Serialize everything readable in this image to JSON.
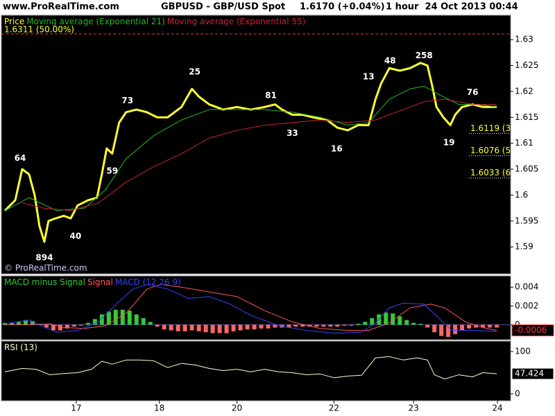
{
  "header": {
    "site": "www.ProRealTime.com",
    "instrument": "GBPUSD - GBP/USD Spot",
    "quote": "1.6170 (+0.04%)",
    "period": "1 hour  24 Oct 2013 00:44"
  },
  "chart_data": [
    {
      "type": "line",
      "xlim": [
        0,
        147
      ],
      "ylim": [
        1.5848,
        1.6347
      ],
      "yticks": [
        1.59,
        1.595,
        1.6,
        1.605,
        1.61,
        1.615,
        1.62,
        1.625,
        1.63
      ],
      "watermark": "© ProRealTime.com",
      "levels": [
        {
          "value": 1.6311,
          "label": "1.6311 (50.00%)",
          "color": "#ff3333",
          "style": "dashed"
        },
        {
          "value": 1.6119,
          "label": "1.6119 (38",
          "color": "#ffffff",
          "style": "dotted"
        },
        {
          "value": 1.6076,
          "label": "1.6076 (50",
          "color": "#ffffff",
          "style": "dotted"
        },
        {
          "value": 1.6033,
          "label": "1.6033 (6",
          "color": "#ffffff",
          "style": "dotted"
        }
      ],
      "series": [
        {
          "name": "Price",
          "color": "#ffff33",
          "type": "line",
          "width": 3,
          "x": [
            1,
            4,
            6,
            8,
            9.6,
            11,
            12.4,
            13.6,
            15.6,
            18,
            20,
            22,
            25,
            27.6,
            29,
            30.4,
            32,
            34,
            36,
            39,
            42,
            45,
            48,
            52,
            55,
            57,
            60,
            64,
            68,
            72,
            76,
            79,
            81,
            84,
            87,
            90,
            94,
            97,
            100,
            103,
            106,
            108,
            109.6,
            112,
            115,
            118,
            121,
            123,
            124.4,
            125.6,
            127.6,
            129.6,
            131,
            133,
            136,
            139,
            143
          ],
          "values": [
            1.597,
            1.599,
            1.605,
            1.604,
            1.6,
            1.594,
            1.591,
            1.595,
            1.5955,
            1.596,
            1.5955,
            1.598,
            1.599,
            1.5995,
            1.604,
            1.609,
            1.608,
            1.614,
            1.616,
            1.6165,
            1.616,
            1.615,
            1.615,
            1.617,
            1.6205,
            1.619,
            1.6175,
            1.6165,
            1.617,
            1.6165,
            1.617,
            1.6175,
            1.6165,
            1.6155,
            1.6155,
            1.615,
            1.6145,
            1.613,
            1.6125,
            1.6135,
            1.6135,
            1.6185,
            1.6215,
            1.6245,
            1.624,
            1.6245,
            1.6255,
            1.625,
            1.621,
            1.617,
            1.615,
            1.6135,
            1.6155,
            1.617,
            1.6175,
            1.617,
            1.617
          ]
        },
        {
          "name": "Moving average (Exponential 21)",
          "color": "#22bb22",
          "type": "line",
          "width": 1,
          "x": [
            1,
            8,
            16,
            24,
            30,
            36,
            44,
            52,
            60,
            68,
            76,
            84,
            92,
            100,
            106,
            112,
            118,
            122,
            126,
            132,
            138,
            143
          ],
          "values": [
            1.597,
            1.5995,
            1.597,
            1.5975,
            1.601,
            1.607,
            1.6115,
            1.6145,
            1.6165,
            1.6165,
            1.6165,
            1.616,
            1.615,
            1.6135,
            1.614,
            1.6185,
            1.6205,
            1.621,
            1.6195,
            1.6175,
            1.6175,
            1.617
          ]
        },
        {
          "name": "Moving average (Exponential 55)",
          "color": "#cc2233",
          "type": "line",
          "width": 1,
          "x": [
            6,
            12,
            20,
            28,
            36,
            44,
            52,
            60,
            68,
            76,
            84,
            92,
            100,
            108,
            116,
            122,
            128,
            136,
            143
          ],
          "values": [
            1.5985,
            1.5975,
            1.597,
            1.5985,
            1.6025,
            1.6055,
            1.608,
            1.611,
            1.6125,
            1.6135,
            1.614,
            1.6145,
            1.614,
            1.6145,
            1.6165,
            1.618,
            1.6185,
            1.6175,
            1.6175
          ]
        }
      ],
      "annotations": [
        {
          "text": "64",
          "x": 5.4,
          "y": 1.6071
        },
        {
          "text": "894",
          "x": 12.4,
          "y": 1.5879
        },
        {
          "text": "40",
          "x": 21.4,
          "y": 1.592
        },
        {
          "text": "59",
          "x": 32,
          "y": 1.6046
        },
        {
          "text": "73",
          "x": 36.4,
          "y": 1.6182
        },
        {
          "text": "25",
          "x": 55.8,
          "y": 1.6237
        },
        {
          "text": "81",
          "x": 77.8,
          "y": 1.6192
        },
        {
          "text": "33",
          "x": 84,
          "y": 1.6119
        },
        {
          "text": "16",
          "x": 96.8,
          "y": 1.6089
        },
        {
          "text": "13",
          "x": 106,
          "y": 1.6228
        },
        {
          "text": "48",
          "x": 112.2,
          "y": 1.6259
        },
        {
          "text": "258",
          "x": 122,
          "y": 1.6269
        },
        {
          "text": "19",
          "x": 129.2,
          "y": 1.6101
        },
        {
          "text": "76",
          "x": 136,
          "y": 1.6198
        }
      ]
    },
    {
      "type": "combo",
      "xlim": [
        0,
        147
      ],
      "ylim": [
        -0.0016,
        0.0052
      ],
      "yticks": [
        0,
        0.002,
        0.004
      ],
      "last_value": -0.0006,
      "last_color": "#ff3333",
      "series": [
        {
          "name": "MACD minus Signal",
          "color": "#33cc33",
          "type": "bar",
          "positive_color": "#33cc33",
          "negative_color": "#ff6666",
          "x": [
            1,
            3,
            5,
            7,
            9,
            11,
            13,
            15,
            17,
            19,
            21,
            23,
            25,
            27,
            29,
            31,
            33,
            35,
            37,
            39,
            41,
            43,
            45,
            47,
            49,
            51,
            53,
            55,
            57,
            59,
            61,
            63,
            65,
            67,
            69,
            71,
            73,
            75,
            77,
            79,
            81,
            83,
            85,
            87,
            89,
            91,
            93,
            95,
            97,
            99,
            101,
            103,
            105,
            107,
            109,
            111,
            113,
            115,
            117,
            119,
            121,
            123,
            125,
            127,
            129,
            131,
            133,
            135,
            137,
            139,
            141,
            143
          ],
          "values": [
            0.0002,
            0.0002,
            0.0003,
            0.0005,
            0.0004,
            0.0001,
            -0.0003,
            -0.0006,
            -0.0006,
            -0.0004,
            -0.0002,
            -0.0001,
            0.0002,
            0.0006,
            0.0011,
            0.0014,
            0.0016,
            0.0016,
            0.0015,
            0.0011,
            0.0007,
            0.0003,
            -0.0002,
            -0.0005,
            -0.0006,
            -0.0007,
            -0.0007,
            -0.0006,
            -0.0007,
            -0.0008,
            -0.0009,
            -0.0009,
            -0.0009,
            -0.0007,
            -0.0006,
            -0.0005,
            -0.0005,
            -0.0004,
            -0.0004,
            -0.0003,
            -0.0003,
            -0.0003,
            -0.0002,
            -0.0002,
            -0.0002,
            -0.0002,
            -0.0002,
            -0.0002,
            -0.0002,
            -0.0001,
            -0.0001,
            0.0001,
            0.0003,
            0.0007,
            0.0011,
            0.0013,
            0.0012,
            0.0009,
            0.0005,
            0.0002,
            0.0001,
            -0.0003,
            -0.0008,
            -0.0012,
            -0.0013,
            -0.001,
            -0.0006,
            -0.0004,
            -0.0003,
            -0.0003,
            -0.0003,
            -0.0003
          ]
        },
        {
          "name": "Signal",
          "color": "#ff5555",
          "type": "line",
          "width": 1,
          "x": [
            1,
            8,
            14,
            18,
            24,
            30,
            36,
            42,
            46,
            52,
            60,
            68,
            76,
            84,
            92,
            100,
            106,
            112,
            118,
            124,
            128,
            134,
            140,
            143
          ],
          "values": [
            0,
            0,
            0.0001,
            -0.0003,
            -0.0004,
            -0.0001,
            0.0012,
            0.0038,
            0.0043,
            0.004,
            0.0035,
            0.003,
            0.0015,
            0.0003,
            -0.0004,
            -0.0006,
            -0.0006,
            0.0002,
            0.0018,
            0.0022,
            0.0018,
            0.0003,
            -0.0004,
            -0.0006
          ]
        },
        {
          "name": "MACD (12 26 9)",
          "color": "#3344ff",
          "type": "line",
          "width": 1,
          "x": [
            1,
            8,
            12,
            16,
            22,
            28,
            34,
            38,
            42,
            48,
            54,
            60,
            66,
            72,
            80,
            88,
            96,
            104,
            108,
            112,
            116,
            122,
            126,
            130,
            136,
            143
          ],
          "values": [
            0.0001,
            0.0005,
            -0.0002,
            -0.0008,
            -0.0006,
            0.0003,
            0.0025,
            0.0038,
            0.0043,
            0.0038,
            0.0028,
            0.003,
            0.0022,
            0.001,
            -0.0001,
            -0.0006,
            -0.0009,
            -0.0008,
            0.0002,
            0.0018,
            0.0023,
            0.0022,
            0.0008,
            -0.0006,
            -0.0006,
            -0.0007
          ]
        }
      ]
    },
    {
      "type": "line",
      "xlim": [
        0,
        147
      ],
      "ylim": [
        -16.4,
        124.6
      ],
      "yticks": [
        0,
        100
      ],
      "last_value": 47.424,
      "last_color": "#ffffff",
      "xticks": [
        {
          "value": 21.6,
          "label": "17"
        },
        {
          "value": 45.6,
          "label": "18"
        },
        {
          "value": 68,
          "label": "20"
        },
        {
          "value": 96,
          "label": "22"
        },
        {
          "value": 119,
          "label": "23"
        },
        {
          "value": 143.2,
          "label": "24"
        }
      ],
      "series": [
        {
          "name": "RSI (13)",
          "color": "#ffffcc",
          "type": "line",
          "width": 1,
          "x": [
            1,
            6,
            10,
            14,
            18,
            22,
            26,
            29,
            32,
            36,
            40,
            44,
            48,
            52,
            56,
            60,
            64,
            68,
            72,
            76,
            80,
            84,
            88,
            92,
            96,
            100,
            104,
            108,
            112,
            116,
            120,
            123,
            125,
            128,
            132,
            136,
            139,
            143
          ],
          "values": [
            52,
            60,
            58,
            45,
            48,
            50,
            58,
            77,
            70,
            80,
            80,
            78,
            62,
            72,
            68,
            60,
            55,
            58,
            52,
            58,
            52,
            50,
            45,
            47,
            38,
            42,
            44,
            85,
            88,
            80,
            85,
            80,
            45,
            35,
            45,
            40,
            50,
            47.424
          ]
        }
      ]
    }
  ]
}
